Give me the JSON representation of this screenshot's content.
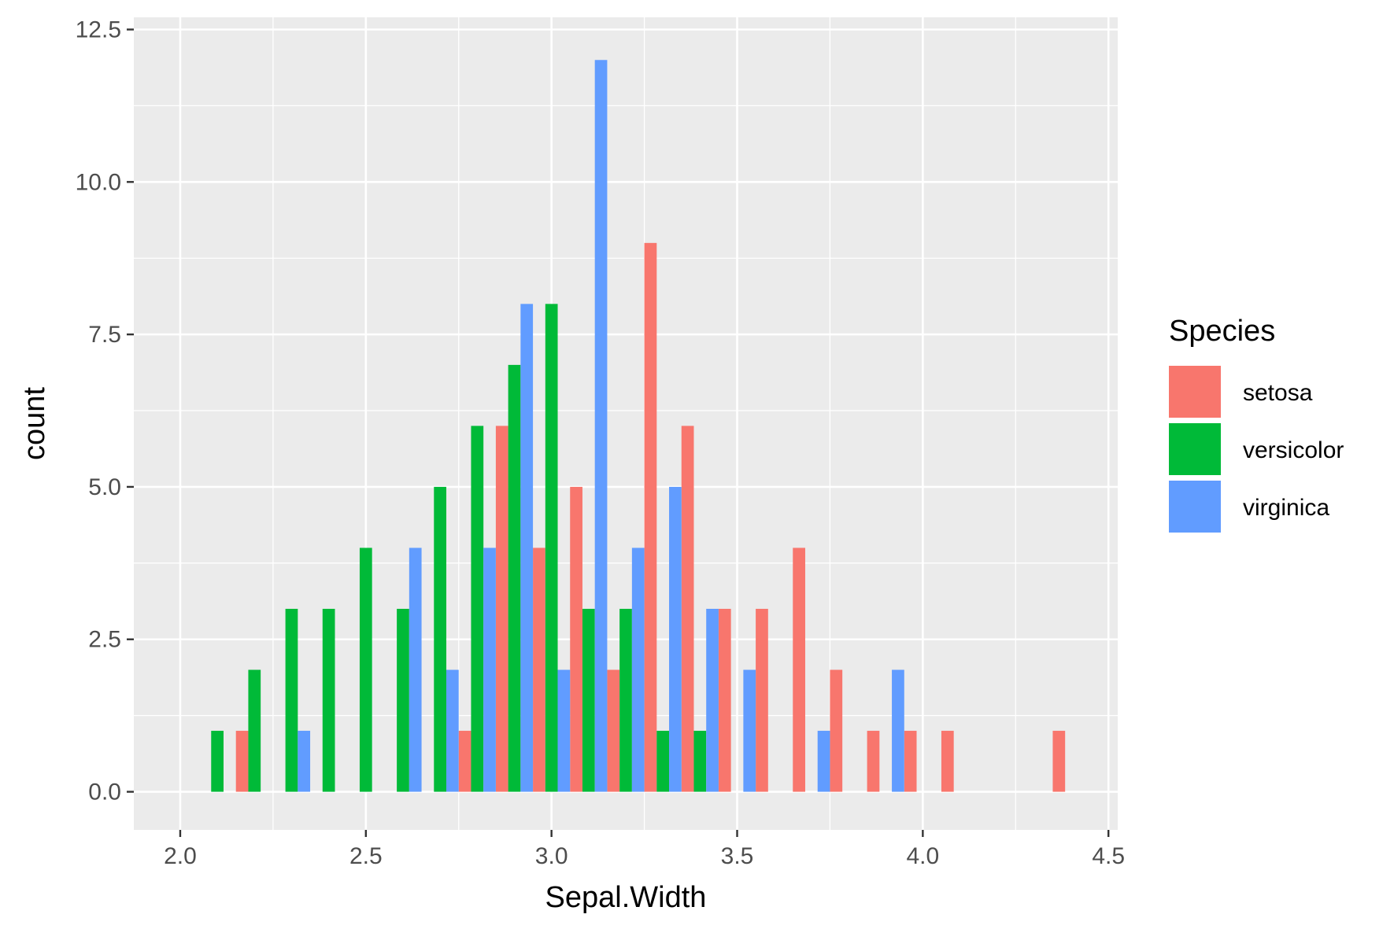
{
  "chart_data": {
    "type": "bar",
    "xlabel": "Sepal.Width",
    "ylabel": "count",
    "xlim": [
      1.875,
      4.525
    ],
    "ylim": [
      -0.625,
      12.5
    ],
    "x_ticks": [
      "2.0",
      "2.5",
      "3.0",
      "3.5",
      "4.0",
      "4.5"
    ],
    "y_ticks": [
      "0.0",
      "2.5",
      "5.0",
      "7.5",
      "10.0",
      "12.5"
    ],
    "grid": true,
    "bin_width": 0.1,
    "legend": {
      "title": "Species",
      "position": "right"
    },
    "x": [
      2.1,
      2.2,
      2.3,
      2.4,
      2.5,
      2.6,
      2.7,
      2.8,
      2.9,
      3.0,
      3.1,
      3.2,
      3.3,
      3.4,
      3.5,
      3.6,
      3.7,
      3.8,
      3.9,
      4.0,
      4.1,
      4.2,
      4.3,
      4.4
    ],
    "series": [
      {
        "name": "setosa",
        "color": "#F8766D",
        "values": [
          0,
          1,
          0,
          0,
          0,
          0,
          0,
          1,
          6,
          4,
          5,
          2,
          9,
          6,
          3,
          3,
          4,
          2,
          1,
          1,
          1,
          0,
          0,
          1
        ]
      },
      {
        "name": "versicolor",
        "color": "#00BA38",
        "values": [
          1,
          2,
          3,
          3,
          4,
          3,
          5,
          6,
          7,
          8,
          3,
          3,
          1,
          1,
          0,
          0,
          0,
          0,
          0,
          0,
          0,
          0,
          0,
          0
        ]
      },
      {
        "name": "virginica",
        "color": "#619CFF",
        "values": [
          0,
          0,
          1,
          0,
          0,
          4,
          2,
          4,
          8,
          2,
          12,
          4,
          5,
          3,
          2,
          0,
          1,
          0,
          2,
          0,
          0,
          0,
          0,
          0
        ]
      }
    ]
  }
}
